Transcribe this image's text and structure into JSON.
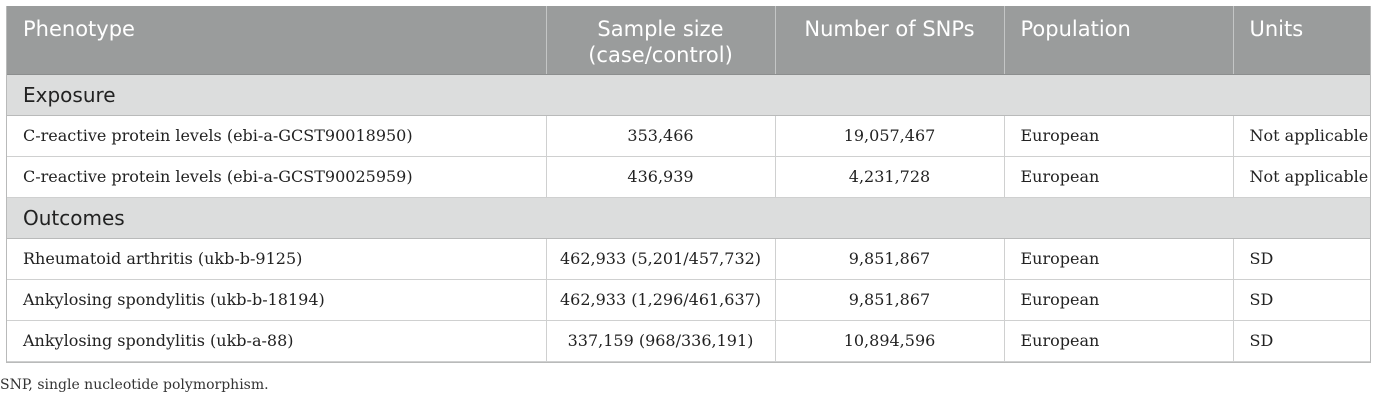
{
  "header": {
    "phenotype": "Phenotype",
    "sample_size_line1": "Sample size",
    "sample_size_line2": "(case/control)",
    "num_snps": "Number of SNPs",
    "population": "Population",
    "units": "Units"
  },
  "sections": [
    {
      "label": "Exposure",
      "rows": [
        {
          "phenotype": "C-reactive protein levels (ebi-a-GCST90018950)",
          "sample_size": "353,466",
          "num_snps": "19,057,467",
          "population": "European",
          "units": "Not applicable"
        },
        {
          "phenotype": "C-reactive protein levels (ebi-a-GCST90025959)",
          "sample_size": "436,939",
          "num_snps": "4,231,728",
          "population": "European",
          "units": "Not applicable"
        }
      ]
    },
    {
      "label": "Outcomes",
      "rows": [
        {
          "phenotype": "Rheumatoid arthritis (ukb-b-9125)",
          "sample_size": "462,933 (5,201/457,732)",
          "num_snps": "9,851,867",
          "population": "European",
          "units": "SD"
        },
        {
          "phenotype": "Ankylosing spondylitis (ukb-b-18194)",
          "sample_size": "462,933 (1,296/461,637)",
          "num_snps": "9,851,867",
          "population": "European",
          "units": "SD"
        },
        {
          "phenotype": "Ankylosing spondylitis (ukb-a-88)",
          "sample_size": "337,159 (968/336,191)",
          "num_snps": "10,894,596",
          "population": "European",
          "units": "SD"
        }
      ]
    }
  ],
  "footnote": "SNP, single nucleotide polymorphism."
}
